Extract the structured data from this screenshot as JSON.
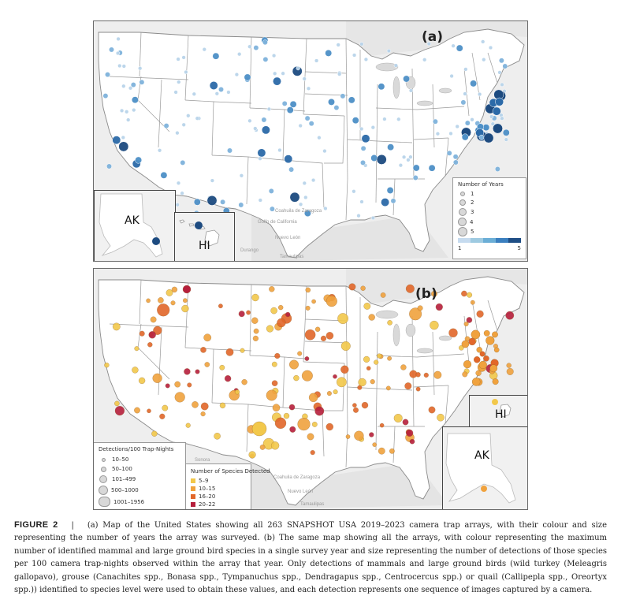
{
  "panel_a": {
    "letter": "(a)",
    "inset_ak": "AK",
    "inset_hi": "HI",
    "legend": {
      "title": "Number of Years",
      "sizes": [
        "1",
        "2",
        "3",
        "4",
        "5"
      ],
      "ramp_min": "1",
      "ramp_max": "5",
      "ramp_colors": [
        "#c6dbef",
        "#9ecae1",
        "#6baed6",
        "#3a7fbf",
        "#1f4e85"
      ]
    },
    "sea_labels": [
      "Golfo de California",
      "Coahuila de Zaragoza",
      "Durango",
      "Nuevo León",
      "Tamaulipas"
    ],
    "dot_colors": [
      "#b9d4ea",
      "#7fb3dc",
      "#4e90c7",
      "#2c6aa8",
      "#1d4b80"
    ]
  },
  "panel_b": {
    "letter": "(b)",
    "inset_hi": "HI",
    "inset_ak": "AK",
    "size_legend": {
      "title": "Detections/100 Trap-Nights",
      "items": [
        "10–50",
        "50–100",
        "101–499",
        "500–1000",
        "1001–1956"
      ]
    },
    "color_legend": {
      "title": "Number of Species Detected",
      "items": [
        {
          "label": "5–9",
          "color": "#f2c84b"
        },
        {
          "label": "10–15",
          "color": "#f0a23e"
        },
        {
          "label": "16–20",
          "color": "#e2672a"
        },
        {
          "label": "20–22",
          "color": "#b61f3c"
        }
      ]
    },
    "sea_labels": [
      "Sonora",
      "Coahuila de Zaragoza",
      "Nuevo León",
      "Tamaulipas"
    ]
  },
  "caption": {
    "label": "FIGURE 2",
    "separator": "|",
    "text": "(a) Map of the United States showing all 263 SNAPSHOT USA 2019–2023 camera trap arrays, with their colour and size representing the number of years the array was surveyed. (b) The same map showing all the arrays, with colour representing the maximum number of identified mammal and large ground bird species in a single survey year and size representing the number of detections of those species per 100 camera trap-nights observed within the array that year. Only detections of mammals and large ground birds (wild turkey (Meleagris gallopavo), grouse (Canachites spp., Bonasa spp., Tympanuchus spp., Dendragapus spp., Centrocercus spp.) or quail (Callipepla spp., Oreortyx spp.)) identified to species level were used to obtain these values, and each detection represents one sequence of images captured by a camera."
  }
}
